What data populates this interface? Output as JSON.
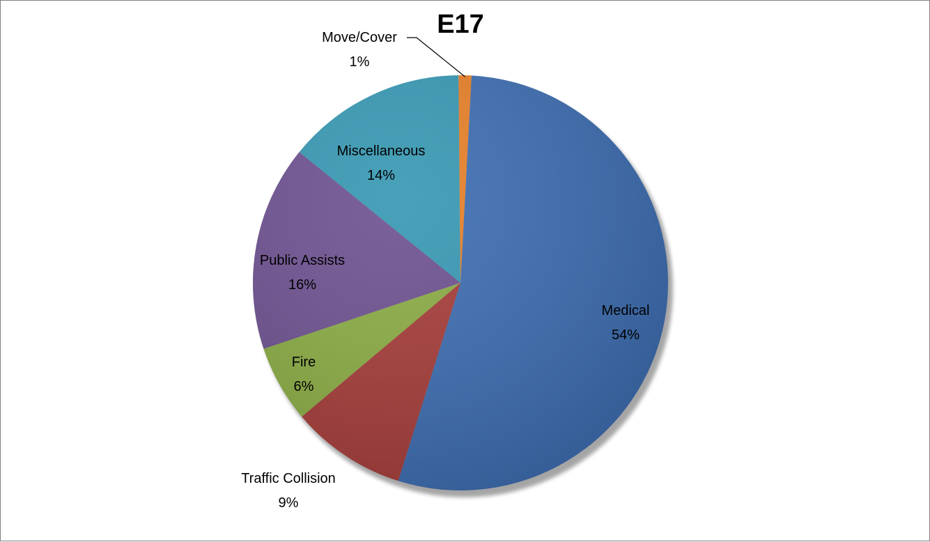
{
  "chart_data": {
    "type": "pie",
    "title": "E17",
    "slices": [
      {
        "label": "Medical",
        "percent_label": "54%",
        "value": 54,
        "color": "#3a6bb0"
      },
      {
        "label": "Traffic Collision",
        "percent_label": "9%",
        "value": 9,
        "color": "#a53a37"
      },
      {
        "label": "Fire",
        "percent_label": "6%",
        "value": 6,
        "color": "#8aac42"
      },
      {
        "label": "Public Assists",
        "percent_label": "16%",
        "value": 16,
        "color": "#6c4f8f"
      },
      {
        "label": "Miscellaneous",
        "percent_label": "14%",
        "value": 14,
        "color": "#3497b2"
      },
      {
        "label": "Move/Cover",
        "percent_label": "1%",
        "value": 1,
        "color": "#e87e24"
      }
    ],
    "legend": "none"
  }
}
